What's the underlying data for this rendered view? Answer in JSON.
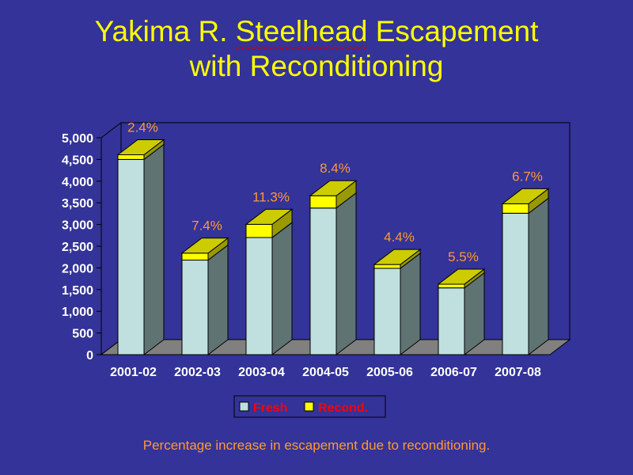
{
  "title": {
    "line1_prefix": "Yakima R. ",
    "line1_word": "Steelhead",
    "line1_suffix": " Escapement",
    "line2": "with Reconditioning"
  },
  "caption": "Percentage increase in escapement due to reconditioning.",
  "colors": {
    "background": "#333399",
    "title": "#ffff00",
    "fresh": "#c0e0e0",
    "recond": "#ffff00",
    "pct_label": "#ff9933",
    "legend_text": "#ff0000",
    "floor": "#808080",
    "back_wall_border": "#000000"
  },
  "chart_data": {
    "type": "bar",
    "stacked": true,
    "three_d": true,
    "categories": [
      "2001-02",
      "2002-03",
      "2003-04",
      "2004-05",
      "2005-06",
      "2006-07",
      "2007-08"
    ],
    "series": [
      {
        "name": "Fresh",
        "values": [
          4500,
          2180,
          2700,
          3380,
          1990,
          1540,
          3260
        ]
      },
      {
        "name": "Recond.",
        "values": [
          108,
          161,
          305,
          284,
          88,
          85,
          218
        ]
      }
    ],
    "data_labels": [
      "2.4%",
      "7.4%",
      "11.3%",
      "8.4%",
      "4.4%",
      "5.5%",
      "6.7%"
    ],
    "y_ticks": [
      "5,000",
      "4,500",
      "4,000",
      "3,500",
      "3,000",
      "2,500",
      "2,000",
      "1,500",
      "1,000",
      "500",
      "0"
    ],
    "ylim": [
      0,
      5000
    ],
    "legend_position": "bottom",
    "grid": false
  }
}
